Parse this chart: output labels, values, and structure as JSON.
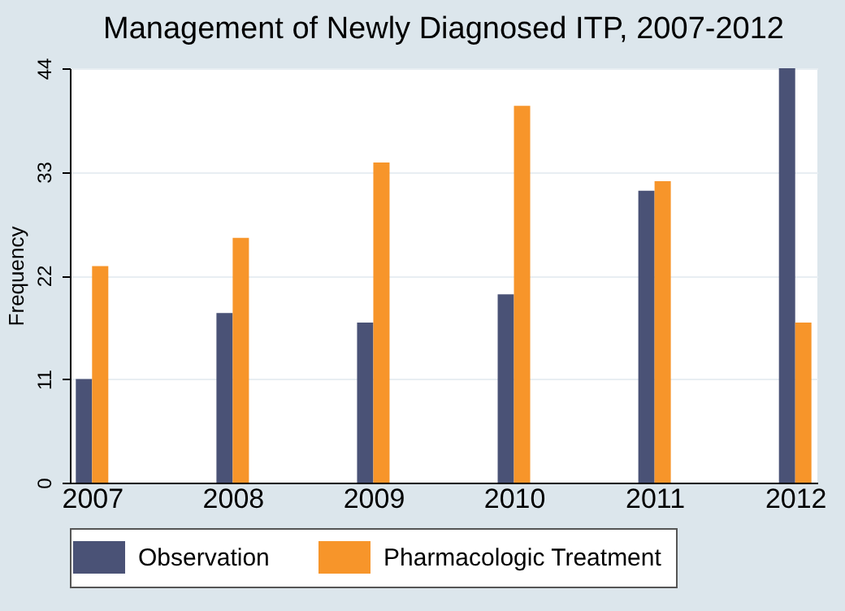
{
  "chart_data": {
    "type": "bar",
    "title": "Management of Newly Diagnosed ITP, 2007-2012",
    "ylabel": "Frequency",
    "x": [
      2007,
      2008,
      2009,
      2010,
      2011,
      2012
    ],
    "series": [
      {
        "name": "Observation",
        "color": "#4a5276",
        "values": [
          11,
          18,
          17,
          20,
          31,
          44
        ]
      },
      {
        "name": "Pharmacologic Treatment",
        "color": "#f7952a",
        "values": [
          23,
          26,
          34,
          40,
          32,
          17
        ]
      }
    ],
    "xlim": [
      2006.9,
      2012.1
    ],
    "xticks": [
      2007,
      2008,
      2009,
      2010,
      2011,
      2012
    ],
    "ylim": [
      0,
      44
    ],
    "yticks": [
      0,
      11,
      22,
      33,
      44
    ],
    "grid": "y",
    "legend": "bottom"
  }
}
